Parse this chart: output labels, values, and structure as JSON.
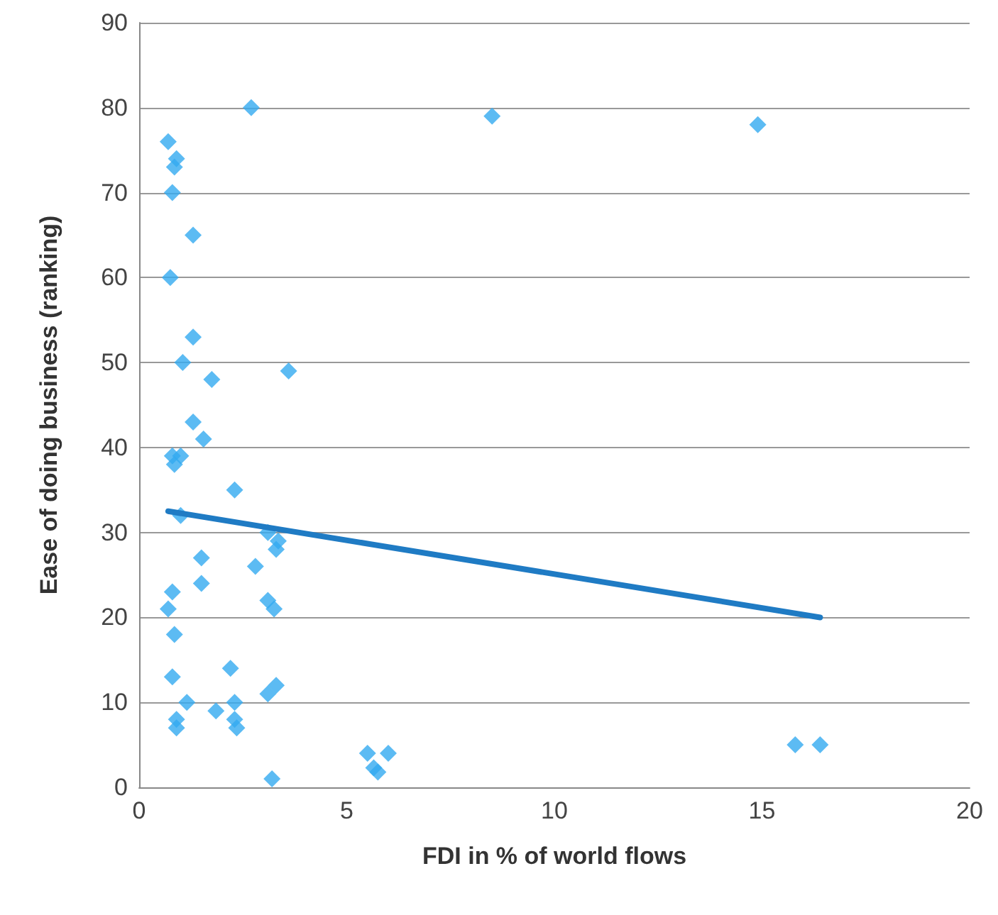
{
  "chart_data": {
    "type": "scatter",
    "xlabel": "FDI in % of world flows",
    "ylabel": "Ease of doing business (ranking)",
    "xlim": [
      0,
      20
    ],
    "xticks": [
      0,
      5,
      10,
      15,
      20
    ],
    "ylim": [
      0,
      90
    ],
    "yticks": [
      0,
      10,
      20,
      30,
      40,
      50,
      60,
      70,
      80,
      90
    ],
    "grid": "y",
    "series": [
      {
        "color": "#33aaf0",
        "marker": "diamond",
        "x": [
          2.7,
          8.5,
          14.9,
          0.7,
          0.9,
          0.85,
          0.8,
          1.3,
          0.75,
          1.3,
          1.05,
          1.75,
          3.6,
          1.3,
          1.55,
          0.8,
          1.0,
          0.85,
          2.3,
          1.0,
          3.1,
          3.35,
          3.3,
          1.5,
          2.8,
          1.5,
          0.8,
          0.7,
          3.1,
          3.25,
          0.85,
          2.2,
          0.8,
          3.3,
          3.1,
          1.15,
          2.3,
          1.85,
          0.9,
          0.9,
          2.3,
          2.35,
          3.2,
          5.5,
          6.0,
          5.65,
          5.75,
          15.8,
          16.4
        ],
        "values": [
          80,
          79,
          78,
          76,
          74,
          73,
          70,
          65,
          60,
          53,
          50,
          48,
          49,
          43,
          41,
          39,
          39,
          38,
          35,
          32,
          30,
          29,
          28,
          27,
          26,
          24,
          23,
          21,
          22,
          21,
          18,
          14,
          13,
          12,
          11,
          10,
          10,
          9,
          8,
          7,
          8,
          7,
          1,
          4,
          4,
          2.3,
          1.8,
          5,
          5
        ]
      },
      {
        "type": "line",
        "color": "#1f7bc4",
        "marker": "none",
        "line_style": "solid",
        "x": [
          0.7,
          16.4
        ],
        "values": [
          32.5,
          20
        ]
      }
    ]
  }
}
